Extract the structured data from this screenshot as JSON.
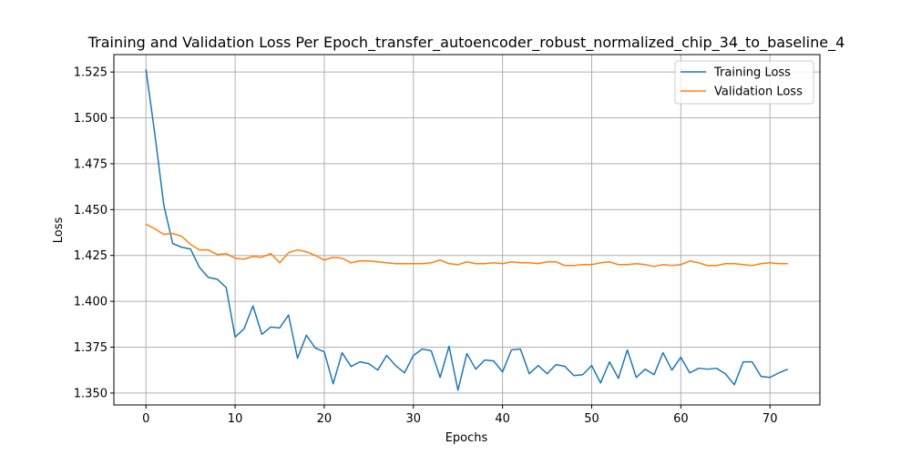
{
  "chart_data": {
    "type": "line",
    "title": "Training and Validation Loss Per Epoch_transfer_autoencoder_robust_normalized_chip_34_to_baseline_4",
    "xlabel": "Epochs",
    "ylabel": "Loss",
    "xlim": [
      -3.6,
      75.6
    ],
    "ylim": [
      1.3435,
      1.5345
    ],
    "xticks": [
      0,
      10,
      20,
      30,
      40,
      50,
      60,
      70
    ],
    "yticks": [
      1.35,
      1.375,
      1.4,
      1.425,
      1.45,
      1.475,
      1.5,
      1.525
    ],
    "ytick_labels": [
      "1.350",
      "1.375",
      "1.400",
      "1.425",
      "1.450",
      "1.475",
      "1.500",
      "1.525"
    ],
    "grid": true,
    "legend_position": "top-right",
    "x": [
      0,
      1,
      2,
      3,
      4,
      5,
      6,
      7,
      8,
      9,
      10,
      11,
      12,
      13,
      14,
      15,
      16,
      17,
      18,
      19,
      20,
      21,
      22,
      23,
      24,
      25,
      26,
      27,
      28,
      29,
      30,
      31,
      32,
      33,
      34,
      35,
      36,
      37,
      38,
      39,
      40,
      41,
      42,
      43,
      44,
      45,
      46,
      47,
      48,
      49,
      50,
      51,
      52,
      53,
      54,
      55,
      56,
      57,
      58,
      59,
      60,
      61,
      62,
      63,
      64,
      65,
      66,
      67,
      68,
      69,
      70,
      71,
      72
    ],
    "series": [
      {
        "name": "Training Loss",
        "color": "#1f77b4",
        "values": [
          1.5265,
          1.491,
          1.4525,
          1.4315,
          1.4295,
          1.4285,
          1.4185,
          1.413,
          1.412,
          1.4075,
          1.3805,
          1.385,
          1.3975,
          1.382,
          1.386,
          1.3855,
          1.3925,
          1.369,
          1.3815,
          1.3745,
          1.3725,
          1.355,
          1.372,
          1.3645,
          1.367,
          1.366,
          1.3625,
          1.3705,
          1.365,
          1.361,
          1.3705,
          1.374,
          1.373,
          1.3585,
          1.3755,
          1.3515,
          1.3715,
          1.363,
          1.368,
          1.3675,
          1.3615,
          1.3735,
          1.374,
          1.3605,
          1.365,
          1.3605,
          1.3655,
          1.3645,
          1.3595,
          1.36,
          1.365,
          1.3555,
          1.367,
          1.358,
          1.3735,
          1.3585,
          1.363,
          1.36,
          1.372,
          1.3625,
          1.3695,
          1.361,
          1.3635,
          1.363,
          1.3635,
          1.3605,
          1.3545,
          1.367,
          1.367,
          1.359,
          1.3585,
          1.361,
          1.363
        ]
      },
      {
        "name": "Validation Loss",
        "color": "#ff7f0e",
        "values": [
          1.442,
          1.4395,
          1.4365,
          1.437,
          1.4355,
          1.431,
          1.428,
          1.428,
          1.4255,
          1.426,
          1.4235,
          1.423,
          1.4245,
          1.424,
          1.426,
          1.421,
          1.4265,
          1.428,
          1.427,
          1.425,
          1.4225,
          1.424,
          1.4235,
          1.421,
          1.422,
          1.422,
          1.4215,
          1.421,
          1.4205,
          1.4205,
          1.4205,
          1.4205,
          1.421,
          1.4225,
          1.4205,
          1.42,
          1.4215,
          1.4205,
          1.4205,
          1.421,
          1.4205,
          1.4215,
          1.421,
          1.421,
          1.4205,
          1.4215,
          1.4215,
          1.4195,
          1.4195,
          1.42,
          1.42,
          1.421,
          1.4215,
          1.42,
          1.42,
          1.4205,
          1.42,
          1.419,
          1.42,
          1.4195,
          1.42,
          1.422,
          1.421,
          1.4195,
          1.4195,
          1.4205,
          1.4205,
          1.42,
          1.4195,
          1.4205,
          1.421,
          1.4205,
          1.4205
        ]
      }
    ]
  }
}
